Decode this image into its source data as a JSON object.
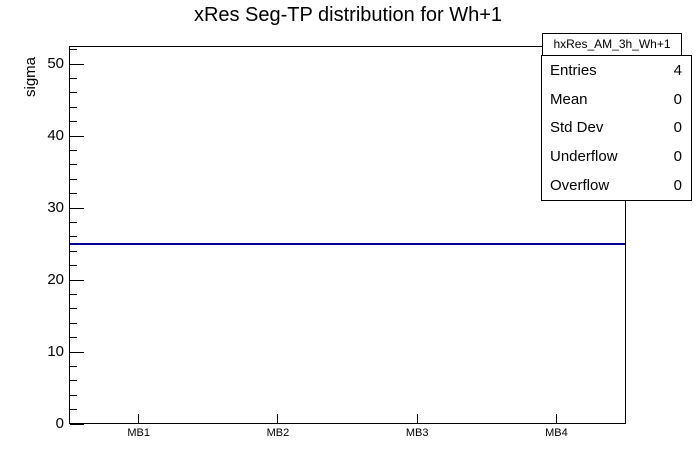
{
  "chart_data": {
    "type": "line",
    "title": "xRes Seg-TP distribution for Wh+1",
    "ylabel": "sigma",
    "xlabel": "",
    "categories": [
      "MB1",
      "MB2",
      "MB3",
      "MB4"
    ],
    "values": [
      25,
      25,
      25,
      25
    ],
    "ylim": [
      0,
      52.5
    ],
    "y_major_ticks": [
      0,
      10,
      20,
      30,
      40,
      50
    ],
    "y_minor_step": 2,
    "grid": false,
    "legend": "none",
    "line_color": "#000099",
    "stats_box": {
      "title": "hxRes_AM_3h_Wh+1",
      "rows": [
        {
          "label": "Entries",
          "value": "4"
        },
        {
          "label": "Mean",
          "value": "0"
        },
        {
          "label": "Std Dev",
          "value": "0"
        },
        {
          "label": "Underflow",
          "value": "0"
        },
        {
          "label": "Overflow",
          "value": "0"
        }
      ]
    }
  }
}
